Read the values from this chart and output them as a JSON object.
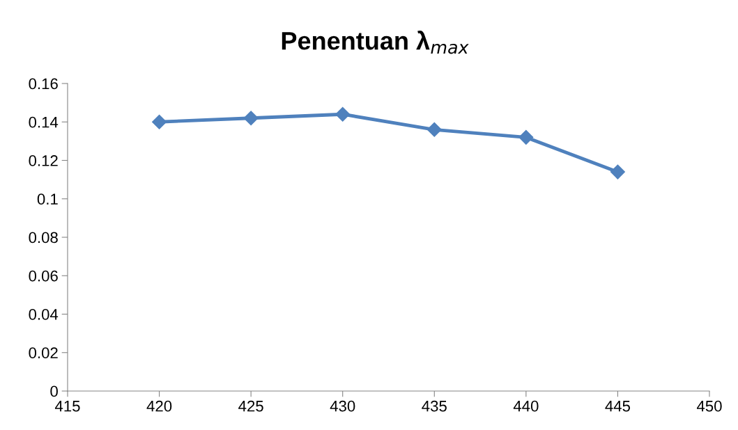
{
  "chart_data": {
    "type": "line",
    "title": "Penentuan λ$_{max}$",
    "x": [
      420,
      425,
      430,
      435,
      440,
      445
    ],
    "series": [
      {
        "color": "#4f81bd",
        "values": [
          0.14,
          0.142,
          0.144,
          0.136,
          0.132,
          0.114
        ]
      }
    ],
    "xlim": [
      415,
      450
    ],
    "xticks": [
      415,
      420,
      425,
      430,
      435,
      440,
      445,
      450
    ],
    "ylim": [
      0,
      0.16
    ],
    "yticks": [
      0,
      0.02,
      0.04,
      0.06,
      0.08,
      0.1,
      0.12,
      0.14,
      0.16
    ],
    "marker": "diamond",
    "line_style": "solid",
    "grid": false,
    "legend": false
  }
}
